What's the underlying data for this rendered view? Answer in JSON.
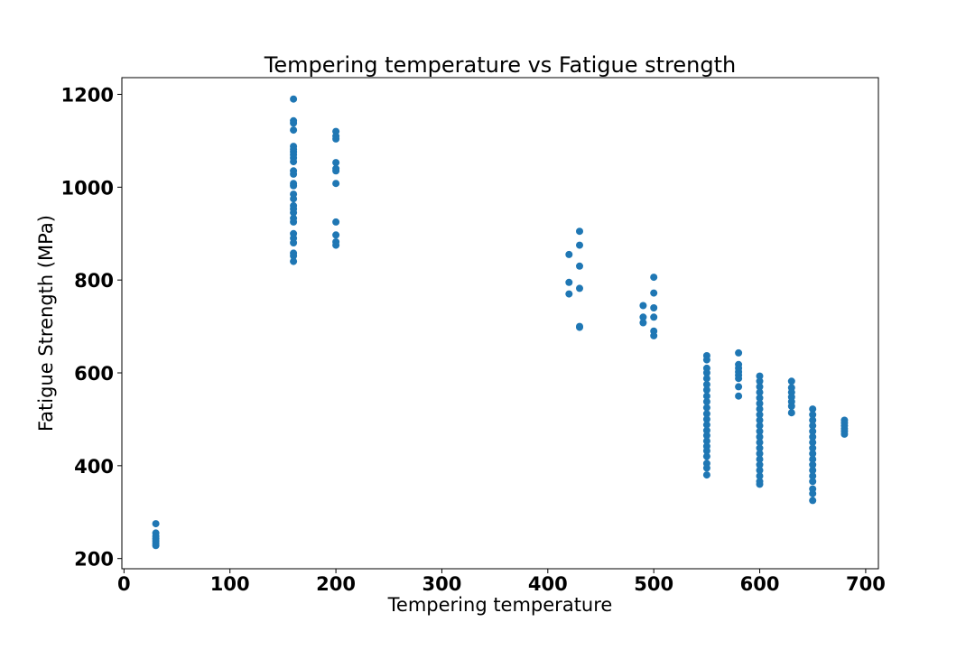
{
  "chart_data": {
    "type": "scatter",
    "title": "Tempering temperature vs Fatigue strength",
    "xlabel": "Tempering temperature",
    "ylabel": "Fatigue Strength (MPa)",
    "xlim": [
      -2,
      712
    ],
    "ylim": [
      178,
      1236
    ],
    "x_ticks": [
      0,
      100,
      200,
      300,
      400,
      500,
      600,
      700
    ],
    "y_ticks": [
      200,
      400,
      600,
      800,
      1000,
      1200
    ],
    "grid": false,
    "legend": "none",
    "marker_color": "#1f77b4",
    "series": [
      {
        "points": [
          [
            30,
            275
          ],
          [
            30,
            255
          ],
          [
            30,
            248
          ],
          [
            30,
            243
          ],
          [
            30,
            238
          ],
          [
            30,
            233
          ],
          [
            30,
            228
          ],
          [
            160,
            1190
          ],
          [
            160,
            1143
          ],
          [
            160,
            1138
          ],
          [
            160,
            1123
          ],
          [
            160,
            1088
          ],
          [
            160,
            1082
          ],
          [
            160,
            1076
          ],
          [
            160,
            1070
          ],
          [
            160,
            1063
          ],
          [
            160,
            1055
          ],
          [
            160,
            1035
          ],
          [
            160,
            1028
          ],
          [
            160,
            1008
          ],
          [
            160,
            1003
          ],
          [
            160,
            985
          ],
          [
            160,
            975
          ],
          [
            160,
            960
          ],
          [
            160,
            953
          ],
          [
            160,
            945
          ],
          [
            160,
            933
          ],
          [
            160,
            925
          ],
          [
            160,
            900
          ],
          [
            160,
            890
          ],
          [
            160,
            880
          ],
          [
            160,
            858
          ],
          [
            160,
            852
          ],
          [
            160,
            840
          ],
          [
            200,
            1120
          ],
          [
            200,
            1110
          ],
          [
            200,
            1104
          ],
          [
            200,
            1053
          ],
          [
            200,
            1040
          ],
          [
            200,
            1035
          ],
          [
            200,
            1008
          ],
          [
            200,
            925
          ],
          [
            200,
            897
          ],
          [
            200,
            882
          ],
          [
            200,
            875
          ],
          [
            420,
            855
          ],
          [
            420,
            795
          ],
          [
            420,
            770
          ],
          [
            430,
            905
          ],
          [
            430,
            875
          ],
          [
            430,
            830
          ],
          [
            430,
            782
          ],
          [
            430,
            700
          ],
          [
            430,
            698
          ],
          [
            490,
            745
          ],
          [
            490,
            720
          ],
          [
            490,
            708
          ],
          [
            500,
            806
          ],
          [
            500,
            772
          ],
          [
            500,
            740
          ],
          [
            500,
            720
          ],
          [
            500,
            690
          ],
          [
            500,
            680
          ],
          [
            550,
            637
          ],
          [
            550,
            628
          ],
          [
            550,
            610
          ],
          [
            550,
            600
          ],
          [
            550,
            588
          ],
          [
            550,
            575
          ],
          [
            550,
            563
          ],
          [
            550,
            550
          ],
          [
            550,
            538
          ],
          [
            550,
            525
          ],
          [
            550,
            512
          ],
          [
            550,
            500
          ],
          [
            550,
            488
          ],
          [
            550,
            476
          ],
          [
            550,
            465
          ],
          [
            550,
            453
          ],
          [
            550,
            442
          ],
          [
            550,
            432
          ],
          [
            550,
            420
          ],
          [
            550,
            405
          ],
          [
            550,
            395
          ],
          [
            550,
            380
          ],
          [
            580,
            643
          ],
          [
            580,
            618
          ],
          [
            580,
            610
          ],
          [
            580,
            602
          ],
          [
            580,
            595
          ],
          [
            580,
            588
          ],
          [
            580,
            570
          ],
          [
            580,
            550
          ],
          [
            600,
            593
          ],
          [
            600,
            582
          ],
          [
            600,
            570
          ],
          [
            600,
            558
          ],
          [
            600,
            546
          ],
          [
            600,
            534
          ],
          [
            600,
            522
          ],
          [
            600,
            510
          ],
          [
            600,
            498
          ],
          [
            600,
            486
          ],
          [
            600,
            474
          ],
          [
            600,
            462
          ],
          [
            600,
            450
          ],
          [
            600,
            438
          ],
          [
            600,
            426
          ],
          [
            600,
            414
          ],
          [
            600,
            402
          ],
          [
            600,
            390
          ],
          [
            600,
            378
          ],
          [
            600,
            366
          ],
          [
            600,
            360
          ],
          [
            630,
            582
          ],
          [
            630,
            568
          ],
          [
            630,
            558
          ],
          [
            630,
            548
          ],
          [
            630,
            538
          ],
          [
            630,
            528
          ],
          [
            630,
            514
          ],
          [
            650,
            522
          ],
          [
            650,
            510
          ],
          [
            650,
            498
          ],
          [
            650,
            486
          ],
          [
            650,
            474
          ],
          [
            650,
            462
          ],
          [
            650,
            450
          ],
          [
            650,
            438
          ],
          [
            650,
            426
          ],
          [
            650,
            414
          ],
          [
            650,
            402
          ],
          [
            650,
            390
          ],
          [
            650,
            378
          ],
          [
            650,
            366
          ],
          [
            650,
            350
          ],
          [
            650,
            340
          ],
          [
            650,
            325
          ],
          [
            680,
            498
          ],
          [
            680,
            492
          ],
          [
            680,
            486
          ],
          [
            680,
            480
          ],
          [
            680,
            474
          ],
          [
            680,
            468
          ]
        ]
      }
    ]
  }
}
